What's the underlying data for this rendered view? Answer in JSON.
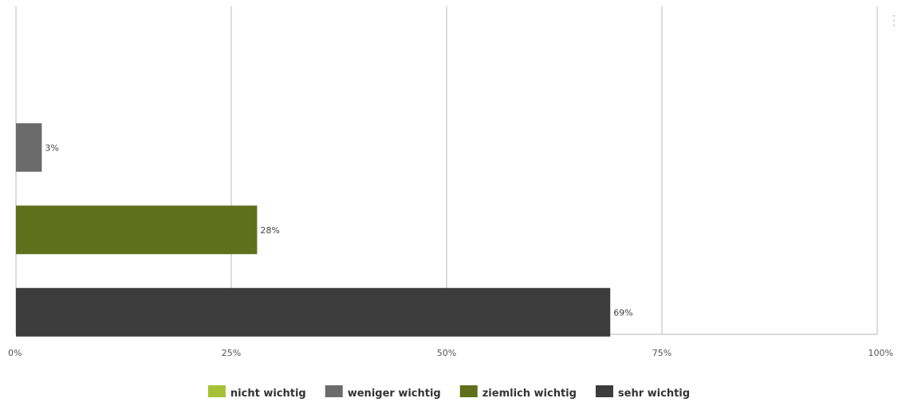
{
  "chart_data": {
    "type": "bar",
    "orientation": "horizontal",
    "categories": [
      "nicht wichtig",
      "weniger wichtig",
      "ziemlich wichtig",
      "sehr wichtig"
    ],
    "values": [
      0,
      3,
      28,
      69
    ],
    "data_labels": [
      "",
      "3%",
      "28%",
      "69%"
    ],
    "colors": [
      "#a7c034",
      "#6b6b6b",
      "#5f6f1c",
      "#3c3c3c"
    ],
    "xlim": [
      0,
      100
    ],
    "x_ticks": [
      0,
      25,
      50,
      75,
      100
    ],
    "x_tick_labels": [
      "0%",
      "25%",
      "50%",
      "75%",
      "100%"
    ],
    "grid": true,
    "legend_position": "bottom"
  }
}
